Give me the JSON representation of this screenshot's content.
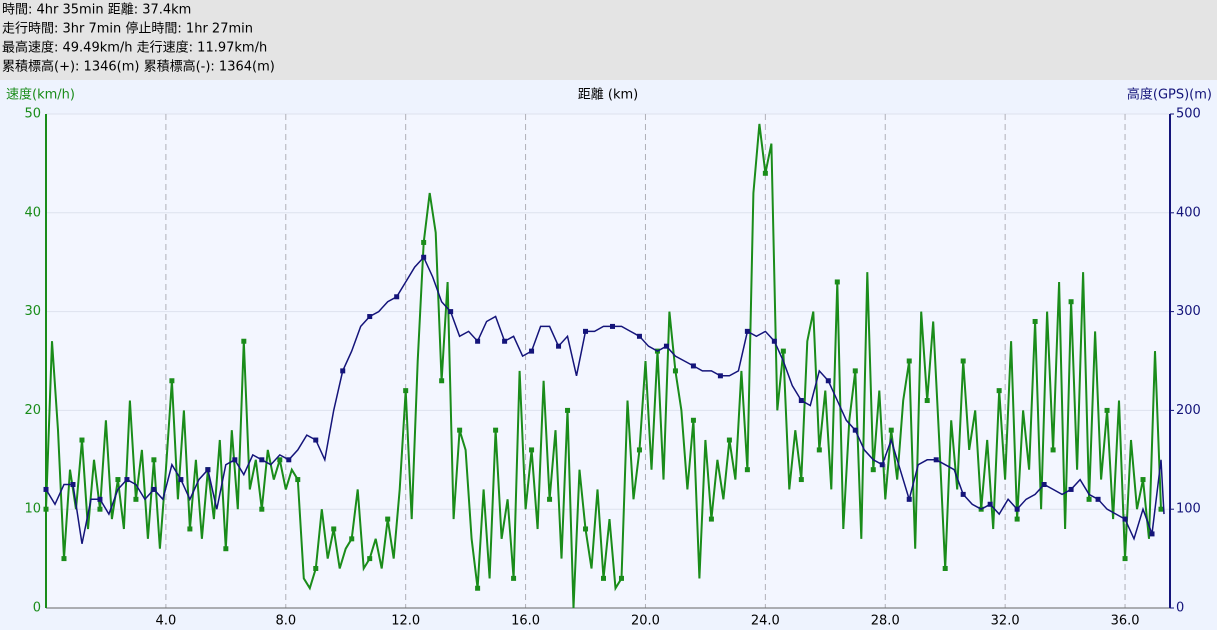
{
  "header": {
    "lines": [
      "時間: 4hr 35min 距離: 37.4km",
      "走行時間: 3hr 7min 停止時間: 1hr 27min",
      "最高速度: 49.49km/h 走行速度: 11.97km/h",
      "累積標高(+): 1346(m) 累積標高(-): 1364(m)"
    ]
  },
  "chart_data": {
    "type": "line",
    "xlabel": "距離 (km)",
    "ylabel": "速度(km/h)",
    "y2label": "高度(GPS)(m)",
    "xlim": [
      0,
      37.5
    ],
    "xticks": [
      {
        "value": 4,
        "label": "4.0"
      },
      {
        "value": 8,
        "label": "8.0"
      },
      {
        "value": 12,
        "label": "12.0"
      },
      {
        "value": 16,
        "label": "16.0"
      },
      {
        "value": 20,
        "label": "20.0"
      },
      {
        "value": 24,
        "label": "24.0"
      },
      {
        "value": 28,
        "label": "28.0"
      },
      {
        "value": 32,
        "label": "32.0"
      },
      {
        "value": 36,
        "label": "36.0"
      }
    ],
    "ylim": [
      0,
      50
    ],
    "yticks": [
      0,
      10,
      20,
      30,
      40,
      50
    ],
    "y2lim": [
      0,
      500
    ],
    "y2ticks": [
      0,
      100,
      200,
      300,
      400,
      500
    ],
    "grid": true,
    "series": [
      {
        "color": "#1a8c1a",
        "axis": "y",
        "x": [
          0,
          0.2,
          0.4,
          0.6,
          0.8,
          1.0,
          1.2,
          1.4,
          1.6,
          1.8,
          2.0,
          2.2,
          2.4,
          2.6,
          2.8,
          3.0,
          3.2,
          3.4,
          3.6,
          3.8,
          4.0,
          4.2,
          4.4,
          4.6,
          4.8,
          5.0,
          5.2,
          5.4,
          5.6,
          5.8,
          6.0,
          6.2,
          6.4,
          6.6,
          6.8,
          7.0,
          7.2,
          7.4,
          7.6,
          7.8,
          8.0,
          8.2,
          8.4,
          8.6,
          8.8,
          9.0,
          9.2,
          9.4,
          9.6,
          9.8,
          10.0,
          10.2,
          10.4,
          10.6,
          10.8,
          11.0,
          11.2,
          11.4,
          11.6,
          11.8,
          12.0,
          12.2,
          12.4,
          12.6,
          12.8,
          13.0,
          13.2,
          13.4,
          13.6,
          13.8,
          14.0,
          14.2,
          14.4,
          14.6,
          14.8,
          15.0,
          15.2,
          15.4,
          15.6,
          15.8,
          16.0,
          16.2,
          16.4,
          16.6,
          16.8,
          17.0,
          17.2,
          17.4,
          17.6,
          17.8,
          18.0,
          18.2,
          18.4,
          18.6,
          18.8,
          19.0,
          19.2,
          19.4,
          19.6,
          19.8,
          20.0,
          20.2,
          20.4,
          20.6,
          20.8,
          21.0,
          21.2,
          21.4,
          21.6,
          21.8,
          22.0,
          22.2,
          22.4,
          22.6,
          22.8,
          23.0,
          23.2,
          23.4,
          23.6,
          23.8,
          24.0,
          24.2,
          24.4,
          24.6,
          24.8,
          25.0,
          25.2,
          25.4,
          25.6,
          25.8,
          26.0,
          26.2,
          26.4,
          26.6,
          26.8,
          27.0,
          27.2,
          27.4,
          27.6,
          27.8,
          28.0,
          28.2,
          28.4,
          28.6,
          28.8,
          29.0,
          29.2,
          29.4,
          29.6,
          29.8,
          30.0,
          30.2,
          30.4,
          30.6,
          30.8,
          31.0,
          31.2,
          31.4,
          31.6,
          31.8,
          32.0,
          32.2,
          32.4,
          32.6,
          32.8,
          33.0,
          33.2,
          33.4,
          33.6,
          33.8,
          34.0,
          34.2,
          34.4,
          34.6,
          34.8,
          35.0,
          35.2,
          35.4,
          35.6,
          35.8,
          36.0,
          36.2,
          36.4,
          36.6,
          36.8,
          37.0,
          37.2
        ],
        "values": [
          10,
          27,
          18,
          5,
          14,
          10,
          17,
          8,
          15,
          10,
          19,
          9,
          13,
          8,
          21,
          11,
          16,
          7,
          15,
          6,
          14,
          23,
          11,
          20,
          8,
          15,
          7,
          14,
          9,
          17,
          6,
          18,
          10,
          27,
          12,
          15,
          10,
          16,
          13,
          15,
          12,
          14,
          13,
          3,
          2,
          4,
          10,
          5,
          8,
          4,
          6,
          7,
          12,
          4,
          5,
          7,
          4,
          9,
          5,
          12,
          22,
          9,
          25,
          37,
          42,
          38,
          23,
          33,
          9,
          18,
          16,
          7,
          2,
          12,
          3,
          18,
          7,
          11,
          3,
          24,
          10,
          16,
          8,
          23,
          11,
          18,
          5,
          20,
          0,
          14,
          8,
          4,
          12,
          3,
          9,
          2,
          3,
          21,
          11,
          16,
          25,
          14,
          26,
          13,
          30,
          24,
          20,
          12,
          19,
          3,
          17,
          9,
          15,
          11,
          17,
          13,
          24,
          14,
          42,
          49,
          44,
          47,
          20,
          26,
          12,
          18,
          13,
          27,
          30,
          16,
          22,
          12,
          33,
          8,
          19,
          24,
          7,
          34,
          14,
          22,
          11,
          18,
          13,
          21,
          25,
          6,
          30,
          21,
          29,
          17,
          4,
          19,
          12,
          25,
          16,
          20,
          10,
          17,
          8,
          22,
          13,
          27,
          9,
          20,
          14,
          29,
          10,
          30,
          16,
          33,
          8,
          31,
          14,
          34,
          11,
          28,
          13,
          20,
          9,
          21,
          5,
          17,
          10,
          13,
          7,
          26,
          10
        ]
      },
      {
        "color": "#14147a",
        "axis": "y2",
        "x": [
          0,
          0.3,
          0.6,
          0.9,
          1.2,
          1.5,
          1.8,
          2.1,
          2.4,
          2.7,
          3.0,
          3.3,
          3.6,
          3.9,
          4.2,
          4.5,
          4.8,
          5.1,
          5.4,
          5.7,
          6.0,
          6.3,
          6.6,
          6.9,
          7.2,
          7.5,
          7.8,
          8.1,
          8.4,
          8.7,
          9.0,
          9.3,
          9.6,
          9.9,
          10.2,
          10.5,
          10.8,
          11.1,
          11.4,
          11.7,
          12.0,
          12.3,
          12.6,
          12.9,
          13.2,
          13.5,
          13.8,
          14.1,
          14.4,
          14.7,
          15.0,
          15.3,
          15.6,
          15.9,
          16.2,
          16.5,
          16.8,
          17.1,
          17.4,
          17.7,
          18.0,
          18.3,
          18.6,
          18.9,
          19.2,
          19.5,
          19.8,
          20.1,
          20.4,
          20.7,
          21.0,
          21.3,
          21.6,
          21.9,
          22.2,
          22.5,
          22.8,
          23.1,
          23.4,
          23.7,
          24.0,
          24.3,
          24.6,
          24.9,
          25.2,
          25.5,
          25.8,
          26.1,
          26.4,
          26.7,
          27.0,
          27.3,
          27.6,
          27.9,
          28.2,
          28.5,
          28.8,
          29.1,
          29.4,
          29.7,
          30.0,
          30.3,
          30.6,
          30.9,
          31.2,
          31.5,
          31.8,
          32.1,
          32.4,
          32.7,
          33.0,
          33.3,
          33.6,
          33.9,
          34.2,
          34.5,
          34.8,
          35.1,
          35.4,
          35.7,
          36.0,
          36.3,
          36.6,
          36.9,
          37.2,
          37.3
        ],
        "values": [
          120,
          105,
          125,
          125,
          65,
          110,
          110,
          95,
          120,
          130,
          125,
          110,
          120,
          110,
          145,
          130,
          110,
          130,
          140,
          100,
          145,
          150,
          135,
          155,
          150,
          145,
          155,
          150,
          160,
          175,
          170,
          150,
          200,
          240,
          260,
          285,
          295,
          300,
          310,
          315,
          330,
          345,
          355,
          335,
          310,
          300,
          275,
          280,
          270,
          290,
          295,
          270,
          275,
          255,
          260,
          285,
          285,
          265,
          275,
          235,
          280,
          280,
          285,
          285,
          285,
          280,
          275,
          265,
          260,
          265,
          255,
          250,
          245,
          240,
          240,
          235,
          235,
          240,
          280,
          275,
          280,
          270,
          250,
          225,
          210,
          205,
          240,
          230,
          210,
          190,
          180,
          160,
          150,
          145,
          170,
          140,
          110,
          145,
          150,
          150,
          145,
          140,
          115,
          105,
          100,
          105,
          95,
          110,
          100,
          110,
          115,
          125,
          120,
          115,
          120,
          130,
          115,
          110,
          100,
          95,
          90,
          70,
          100,
          75,
          150,
          95
        ]
      }
    ]
  }
}
